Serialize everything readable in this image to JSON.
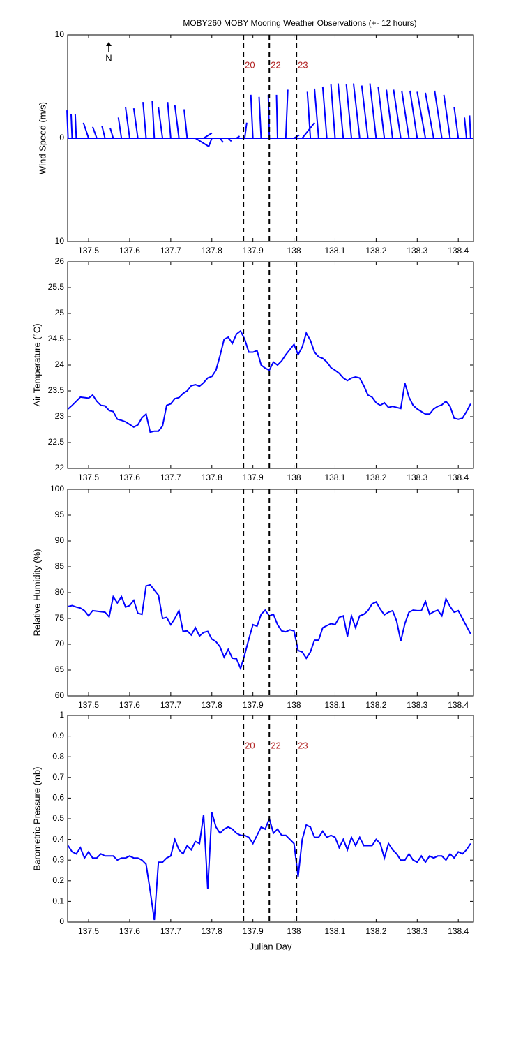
{
  "chart_data": [
    {
      "type": "stick",
      "title": "MOBY260 MOBY Mooring Weather Observations (+- 12 hours)",
      "ylabel": "Wind Speed (m/s)",
      "north_label": "N",
      "color": "#0000ff",
      "xlim": [
        137.449,
        138.437
      ],
      "xticks": [
        137.5,
        137.6,
        137.7,
        137.8,
        137.9,
        138,
        138.1,
        138.2,
        138.3,
        138.4
      ],
      "ylim": [
        -10,
        10
      ],
      "yticks": [
        {
          "value": -10,
          "label": "10"
        },
        0,
        10
      ],
      "x": [
        137.45,
        137.46,
        137.47,
        137.5,
        137.52,
        137.54,
        137.56,
        137.58,
        137.6,
        137.62,
        137.64,
        137.66,
        137.68,
        137.7,
        137.72,
        137.74,
        137.76,
        137.78,
        137.8,
        137.82,
        137.84,
        137.86,
        137.88,
        137.9,
        137.92,
        137.94,
        137.96,
        137.98,
        138.0,
        138.02,
        138.04,
        138.06,
        138.08,
        138.1,
        138.12,
        138.14,
        138.16,
        138.18,
        138.2,
        138.22,
        138.24,
        138.26,
        138.28,
        138.3,
        138.32,
        138.34,
        138.36,
        138.38,
        138.4,
        138.42,
        138.43
      ],
      "u": [
        -0.1,
        -0.1,
        -0.1,
        -0.5,
        -0.4,
        -0.3,
        -0.3,
        -0.3,
        -0.4,
        -0.4,
        -0.3,
        -0.2,
        -0.4,
        -0.3,
        -0.4,
        -0.3,
        1.3,
        0.8,
        -0.3,
        0.3,
        0.3,
        0.3,
        0.2,
        -0.2,
        -0.2,
        -0.1,
        -0.1,
        0.2,
        0.5,
        1.2,
        -0.3,
        -0.4,
        -0.4,
        -0.4,
        -0.5,
        -0.5,
        -0.6,
        -0.6,
        -0.6,
        -0.6,
        -0.6,
        -0.7,
        -0.7,
        -0.7,
        -0.8,
        -0.8,
        -0.7,
        -0.6,
        -0.4,
        -0.2,
        -0.1
      ],
      "v": [
        2.7,
        2.3,
        2.3,
        1.5,
        1.1,
        1.2,
        1.0,
        2.0,
        3.0,
        2.9,
        3.5,
        3.6,
        3.0,
        3.5,
        3.2,
        2.8,
        -0.8,
        0.5,
        -0.8,
        -0.4,
        -0.3,
        0.2,
        1.5,
        4.2,
        4.0,
        4.2,
        4.2,
        4.7,
        0.3,
        1.5,
        4.5,
        4.8,
        5.0,
        5.2,
        5.3,
        5.2,
        5.3,
        5.1,
        5.3,
        5.0,
        4.7,
        4.7,
        4.6,
        4.6,
        4.5,
        4.4,
        4.6,
        4.2,
        3.0,
        2.0,
        2.2
      ],
      "vlines": [
        137.877,
        137.94,
        138.006
      ],
      "vline_labels": [
        "20",
        "22",
        "23"
      ]
    },
    {
      "type": "line",
      "ylabel": "Air Temperature (°C)",
      "color": "#0000ff",
      "xlim": [
        137.449,
        138.437
      ],
      "xticks": [
        137.5,
        137.6,
        137.7,
        137.8,
        137.9,
        138,
        138.1,
        138.2,
        138.3,
        138.4
      ],
      "ylim": [
        22,
        26
      ],
      "yticks": [
        22,
        22.5,
        23,
        23.5,
        24,
        24.5,
        25,
        25.5,
        26
      ],
      "x": [
        137.45,
        137.46,
        137.47,
        137.48,
        137.49,
        137.5,
        137.51,
        137.52,
        137.53,
        137.54,
        137.55,
        137.56,
        137.57,
        137.58,
        137.59,
        137.6,
        137.61,
        137.62,
        137.63,
        137.64,
        137.65,
        137.66,
        137.67,
        137.68,
        137.69,
        137.7,
        137.71,
        137.72,
        137.73,
        137.74,
        137.75,
        137.76,
        137.77,
        137.78,
        137.79,
        137.8,
        137.81,
        137.82,
        137.83,
        137.84,
        137.85,
        137.86,
        137.87,
        137.88,
        137.89,
        137.9,
        137.91,
        137.92,
        137.93,
        137.94,
        137.95,
        137.96,
        137.97,
        137.98,
        137.99,
        138,
        138.01,
        138.02,
        138.03,
        138.04,
        138.05,
        138.06,
        138.07,
        138.08,
        138.09,
        138.1,
        138.11,
        138.12,
        138.13,
        138.14,
        138.15,
        138.16,
        138.17,
        138.18,
        138.19,
        138.2,
        138.21,
        138.22,
        138.23,
        138.24,
        138.25,
        138.26,
        138.27,
        138.28,
        138.29,
        138.3,
        138.31,
        138.32,
        138.33,
        138.34,
        138.35,
        138.36,
        138.37,
        138.38,
        138.39,
        138.4,
        138.41,
        138.42,
        138.43
      ],
      "values": [
        23.15,
        23.22,
        23.3,
        23.38,
        23.37,
        23.36,
        23.42,
        23.3,
        23.22,
        23.21,
        23.12,
        23.1,
        22.95,
        22.93,
        22.9,
        22.85,
        22.8,
        22.84,
        22.98,
        23.05,
        22.7,
        22.72,
        22.72,
        22.82,
        23.22,
        23.25,
        23.35,
        23.37,
        23.45,
        23.5,
        23.6,
        23.62,
        23.59,
        23.66,
        23.75,
        23.78,
        23.9,
        24.18,
        24.5,
        24.54,
        24.42,
        24.6,
        24.66,
        24.5,
        24.25,
        24.25,
        24.28,
        24.0,
        23.94,
        23.9,
        24.06,
        24.0,
        24.08,
        24.2,
        24.3,
        24.4,
        24.2,
        24.35,
        24.62,
        24.48,
        24.25,
        24.16,
        24.13,
        24.06,
        23.95,
        23.9,
        23.84,
        23.75,
        23.7,
        23.75,
        23.77,
        23.75,
        23.6,
        23.42,
        23.38,
        23.27,
        23.22,
        23.27,
        23.18,
        23.2,
        23.18,
        23.16,
        23.65,
        23.38,
        23.22,
        23.15,
        23.1,
        23.05,
        23.05,
        23.15,
        23.2,
        23.23,
        23.3,
        23.2,
        22.97,
        22.95,
        22.97,
        23.1,
        23.25
      ],
      "vlines": [
        137.877,
        137.94,
        138.006
      ]
    },
    {
      "type": "line",
      "ylabel": "Relative Humidity (%)",
      "color": "#0000ff",
      "xlim": [
        137.449,
        138.437
      ],
      "xticks": [
        137.5,
        137.6,
        137.7,
        137.8,
        137.9,
        138,
        138.1,
        138.2,
        138.3,
        138.4
      ],
      "ylim": [
        60,
        100
      ],
      "yticks": [
        60,
        65,
        70,
        75,
        80,
        85,
        90,
        95,
        100
      ],
      "x": [
        137.45,
        137.46,
        137.47,
        137.48,
        137.49,
        137.5,
        137.51,
        137.52,
        137.53,
        137.54,
        137.55,
        137.56,
        137.57,
        137.58,
        137.59,
        137.6,
        137.61,
        137.62,
        137.63,
        137.64,
        137.65,
        137.66,
        137.67,
        137.68,
        137.69,
        137.7,
        137.71,
        137.72,
        137.73,
        137.74,
        137.75,
        137.76,
        137.77,
        137.78,
        137.79,
        137.8,
        137.81,
        137.82,
        137.83,
        137.84,
        137.85,
        137.86,
        137.87,
        137.88,
        137.89,
        137.9,
        137.91,
        137.92,
        137.93,
        137.94,
        137.95,
        137.96,
        137.97,
        137.98,
        137.99,
        138,
        138.01,
        138.02,
        138.03,
        138.04,
        138.05,
        138.06,
        138.07,
        138.08,
        138.09,
        138.1,
        138.11,
        138.12,
        138.13,
        138.14,
        138.15,
        138.16,
        138.17,
        138.18,
        138.19,
        138.2,
        138.21,
        138.22,
        138.23,
        138.24,
        138.25,
        138.26,
        138.27,
        138.28,
        138.29,
        138.3,
        138.31,
        138.32,
        138.33,
        138.34,
        138.35,
        138.36,
        138.37,
        138.38,
        138.39,
        138.4,
        138.41,
        138.42,
        138.43
      ],
      "values": [
        77.3,
        77.5,
        77.2,
        77,
        76.5,
        75.5,
        76.5,
        76.4,
        76.3,
        76.2,
        75.3,
        79.2,
        78,
        79.2,
        77.2,
        77.5,
        78.5,
        76,
        75.8,
        81.3,
        81.5,
        80.5,
        79.5,
        75,
        75.2,
        73.8,
        75,
        76.5,
        72.5,
        72.6,
        71.8,
        73.2,
        71.6,
        72.3,
        72.5,
        71,
        70.5,
        69.5,
        67.5,
        69,
        67.3,
        67.2,
        65.3,
        68,
        71,
        73.8,
        73.5,
        75.8,
        76.6,
        75.5,
        75.8,
        73.8,
        72.6,
        72.4,
        72.8,
        72.6,
        68.8,
        68.5,
        67.3,
        68.5,
        70.8,
        70.8,
        73.2,
        73.6,
        74,
        73.8,
        75.2,
        75.5,
        71.5,
        75.5,
        73.2,
        75.5,
        75.8,
        76.5,
        77.8,
        78.2,
        76.8,
        75.7,
        76.2,
        76.5,
        74.5,
        70.6,
        74,
        76.2,
        76.6,
        76.5,
        76.5,
        78.3,
        75.8,
        76.3,
        76.6,
        75.5,
        78.8,
        77.3,
        76.2,
        76.5,
        75,
        73.5,
        72
      ],
      "vlines": [
        137.877,
        137.94,
        138.006
      ]
    },
    {
      "type": "line",
      "ylabel": "Barometric Pressure (mb)",
      "xlabel": "Julian Day",
      "color": "#0000ff",
      "xlim": [
        137.449,
        138.437
      ],
      "xticks": [
        137.5,
        137.6,
        137.7,
        137.8,
        137.9,
        138,
        138.1,
        138.2,
        138.3,
        138.4
      ],
      "ylim": [
        0,
        1
      ],
      "yticks": [
        0,
        0.1,
        0.2,
        0.3,
        0.4,
        0.5,
        0.6,
        0.7,
        0.8,
        0.9,
        1
      ],
      "x": [
        137.45,
        137.46,
        137.47,
        137.48,
        137.49,
        137.5,
        137.51,
        137.52,
        137.53,
        137.54,
        137.55,
        137.56,
        137.57,
        137.58,
        137.59,
        137.6,
        137.61,
        137.62,
        137.63,
        137.64,
        137.65,
        137.66,
        137.67,
        137.68,
        137.69,
        137.7,
        137.71,
        137.72,
        137.73,
        137.74,
        137.75,
        137.76,
        137.77,
        137.78,
        137.79,
        137.8,
        137.81,
        137.82,
        137.83,
        137.84,
        137.85,
        137.86,
        137.87,
        137.88,
        137.89,
        137.9,
        137.91,
        137.92,
        137.93,
        137.94,
        137.95,
        137.96,
        137.97,
        137.98,
        137.99,
        138,
        138.01,
        138.02,
        138.03,
        138.04,
        138.05,
        138.06,
        138.07,
        138.08,
        138.09,
        138.1,
        138.11,
        138.12,
        138.13,
        138.14,
        138.15,
        138.16,
        138.17,
        138.18,
        138.19,
        138.2,
        138.21,
        138.22,
        138.23,
        138.24,
        138.25,
        138.26,
        138.27,
        138.28,
        138.29,
        138.3,
        138.31,
        138.32,
        138.33,
        138.34,
        138.35,
        138.36,
        138.37,
        138.38,
        138.39,
        138.4,
        138.41,
        138.42,
        138.43
      ],
      "values": [
        0.37,
        0.34,
        0.33,
        0.36,
        0.31,
        0.34,
        0.31,
        0.31,
        0.33,
        0.32,
        0.32,
        0.32,
        0.3,
        0.31,
        0.31,
        0.32,
        0.31,
        0.31,
        0.3,
        0.28,
        0.15,
        0.01,
        0.29,
        0.29,
        0.31,
        0.32,
        0.4,
        0.35,
        0.33,
        0.37,
        0.35,
        0.39,
        0.38,
        0.52,
        0.16,
        0.53,
        0.46,
        0.43,
        0.45,
        0.46,
        0.45,
        0.43,
        0.42,
        0.42,
        0.41,
        0.38,
        0.42,
        0.46,
        0.45,
        0.5,
        0.43,
        0.45,
        0.42,
        0.42,
        0.4,
        0.38,
        0.22,
        0.4,
        0.47,
        0.46,
        0.41,
        0.41,
        0.44,
        0.41,
        0.42,
        0.41,
        0.36,
        0.4,
        0.35,
        0.41,
        0.37,
        0.41,
        0.37,
        0.37,
        0.37,
        0.4,
        0.38,
        0.31,
        0.38,
        0.35,
        0.33,
        0.3,
        0.3,
        0.33,
        0.3,
        0.29,
        0.32,
        0.29,
        0.32,
        0.31,
        0.32,
        0.32,
        0.3,
        0.33,
        0.31,
        0.34,
        0.33,
        0.35,
        0.38
      ],
      "vlines": [
        137.877,
        137.94,
        138.006
      ],
      "vline_labels": [
        "20",
        "22",
        "23"
      ]
    }
  ]
}
